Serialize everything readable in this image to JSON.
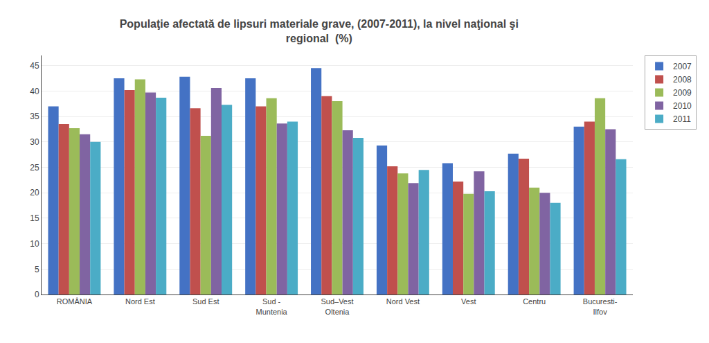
{
  "chart_data": {
    "type": "bar",
    "title": "Populaţie afectată de lipsuri materiale grave, (2007-2011), la nivel naţional şi\nregional  (%)",
    "categories": [
      "ROMÂNIA",
      "Nord Est",
      "Sud Est",
      "Sud -\nMuntenia",
      "Sud–Vest\nOltenia",
      "Nord Vest",
      "Vest",
      "Centru",
      "Bucuresti-\nIlfov"
    ],
    "series": [
      {
        "name": "2007",
        "color": "#4472C4",
        "values": [
          37.0,
          42.5,
          42.8,
          42.5,
          44.5,
          29.3,
          25.8,
          27.7,
          33.0
        ]
      },
      {
        "name": "2008",
        "color": "#C0504D",
        "values": [
          33.5,
          40.2,
          36.6,
          37.0,
          39.0,
          25.2,
          22.2,
          26.7,
          34.0
        ]
      },
      {
        "name": "2009",
        "color": "#9BBB59",
        "values": [
          32.7,
          42.3,
          31.2,
          38.6,
          38.0,
          23.8,
          19.8,
          21.0,
          38.6
        ]
      },
      {
        "name": "2010",
        "color": "#8064A2",
        "values": [
          31.5,
          39.7,
          40.6,
          33.6,
          32.3,
          21.9,
          24.2,
          20.0,
          32.5
        ]
      },
      {
        "name": "2011",
        "color": "#4BACC6",
        "values": [
          30.0,
          38.7,
          37.3,
          34.0,
          30.8,
          24.5,
          20.3,
          18.0,
          26.6
        ]
      }
    ],
    "ylim": [
      0,
      47
    ],
    "yticks": [
      0,
      5,
      10,
      15,
      20,
      25,
      30,
      35,
      40,
      45
    ],
    "grid": true,
    "legend": "upper right"
  }
}
